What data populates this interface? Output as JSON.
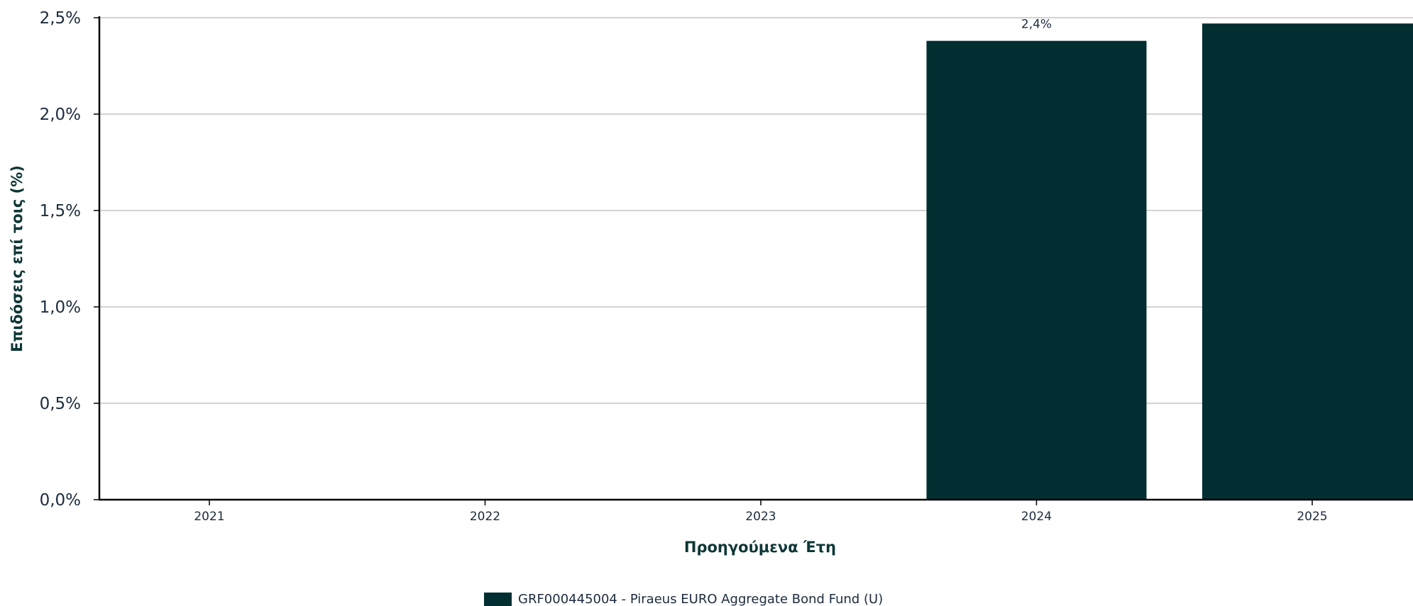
{
  "chart_data": {
    "type": "bar",
    "categories": [
      "2021",
      "2022",
      "2023",
      "2024",
      "2025"
    ],
    "series": [
      {
        "name": "GRF000445004 - Piraeus EURO Aggregate Bond Fund (U)",
        "values": [
          null,
          null,
          null,
          2.38,
          2.47
        ],
        "data_labels": [
          "",
          "",
          "",
          "2,4%",
          ""
        ],
        "color": "#022e31"
      }
    ],
    "title": "",
    "xlabel": "Προηγούμενα Έτη",
    "ylabel": "Επιδόσεις επί τοις (%)",
    "ylim": [
      0,
      2.5
    ],
    "yticks": [
      0,
      0.5,
      1.0,
      1.5,
      2.0,
      2.5
    ],
    "ytick_labels": [
      "0,0%",
      "0,5%",
      "1,0%",
      "1,5%",
      "2,0%",
      "2,5%"
    ],
    "grid": true,
    "legend_position": "bottom"
  },
  "colors": {
    "bar": "#022e31",
    "gridline": "#d3d3d3",
    "axis": "#000000"
  }
}
